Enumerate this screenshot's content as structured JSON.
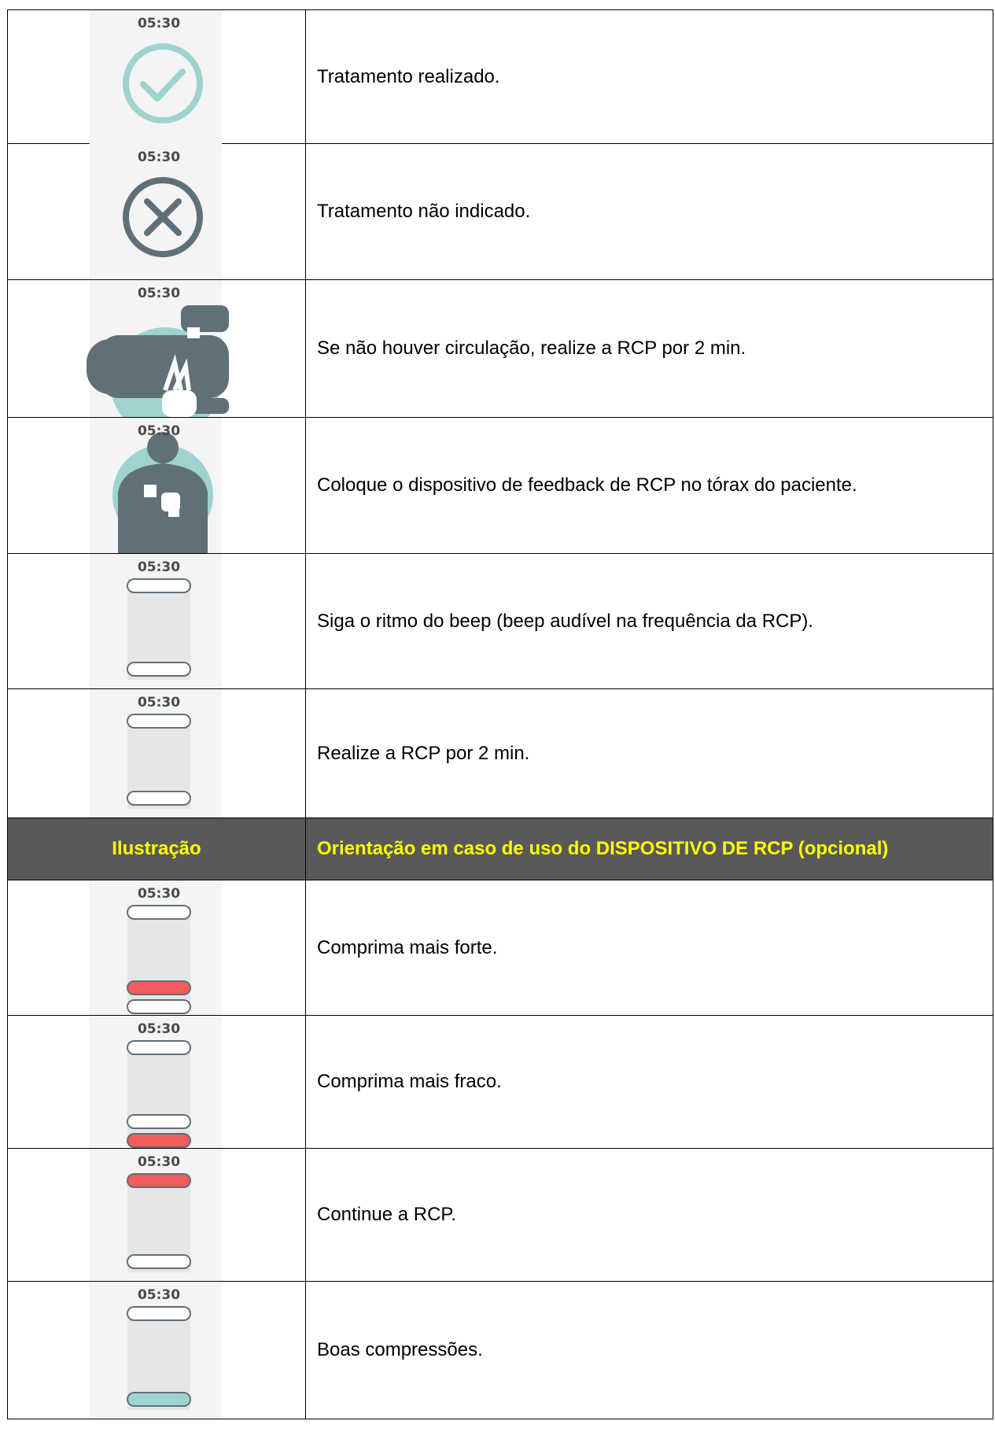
{
  "table": {
    "rows_top": [
      {
        "time": "05:30",
        "text": "Tratamento realizado."
      },
      {
        "time": "05:30",
        "text": "Tratamento não indicado."
      },
      {
        "time": "05:30",
        "text": "Se não houver circulação, realize a RCP por 2 min."
      },
      {
        "time": "05:30",
        "text": "Coloque o dispositivo de feedback de RCP no tórax do paciente."
      },
      {
        "time": "05:30",
        "text": "Siga o ritmo do beep (beep audível na frequência da RCP)."
      },
      {
        "time": "05:30",
        "text": "Realize a RCP por 2 min."
      }
    ],
    "header": {
      "illustration": "Ilustração",
      "guidance": "Orientação em caso de uso do DISPOSITIVO DE RCP (opcional)"
    },
    "rows_bottom": [
      {
        "time": "05:30",
        "text": "Comprima mais forte."
      },
      {
        "time": "05:30",
        "text": "Comprima mais fraco."
      },
      {
        "time": "05:30",
        "text": "Continue a RCP."
      },
      {
        "time": "05:30",
        "text": "Boas compressões."
      }
    ]
  }
}
